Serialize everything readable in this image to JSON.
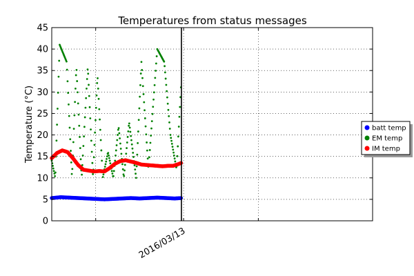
{
  "chart_data": {
    "type": "scatter",
    "title": "Temperatures from status messages",
    "xlabel": "",
    "ylabel": "Temperature (°C)",
    "ylim": [
      0,
      45
    ],
    "yticks": [
      0,
      5,
      10,
      15,
      20,
      25,
      30,
      35,
      40,
      45
    ],
    "x_tick_labels": [
      "2016/03/13"
    ],
    "grid": true,
    "legend_position": "right, outside plot",
    "marker_line_label": "",
    "x_range_days": [
      -3,
      4.3
    ],
    "data_end_day": -0.05,
    "x_tick_day": 0,
    "x_minor_grid_days": [
      -2,
      1.7
    ],
    "series": [
      {
        "name": "batt temp",
        "color": "#0000ff",
        "points_x_days": [
          -3.0,
          -2.8,
          -2.6,
          -2.4,
          -2.2,
          -2.0,
          -1.8,
          -1.6,
          -1.4,
          -1.2,
          -1.0,
          -0.8,
          -0.6,
          -0.4,
          -0.2,
          -0.05
        ],
        "points_y": [
          5.3,
          5.5,
          5.4,
          5.3,
          5.2,
          5.1,
          5.0,
          5.1,
          5.2,
          5.3,
          5.2,
          5.3,
          5.4,
          5.3,
          5.2,
          5.3
        ]
      },
      {
        "name": "EM temp",
        "color": "#008000",
        "points_x_days": [
          -3.0,
          -2.92,
          -2.82,
          -2.66,
          -2.54,
          -2.44,
          -2.32,
          -2.18,
          -2.06,
          -1.96,
          -1.84,
          -1.72,
          -1.6,
          -1.48,
          -1.36,
          -1.24,
          -1.08,
          -0.96,
          -0.8,
          -0.6,
          -0.44,
          -0.3,
          -0.16,
          -0.05
        ],
        "points_y": [
          14,
          10,
          41,
          37,
          10,
          36,
          10,
          36,
          10,
          34,
          10,
          16,
          10,
          22,
          10,
          23,
          10,
          37,
          12,
          40,
          37,
          20,
          12,
          33
        ]
      },
      {
        "name": "IM temp",
        "color": "#ff0000",
        "points_x_days": [
          -3.0,
          -2.88,
          -2.76,
          -2.64,
          -2.52,
          -2.4,
          -2.28,
          -2.16,
          -2.04,
          -1.92,
          -1.8,
          -1.68,
          -1.56,
          -1.44,
          -1.32,
          -1.2,
          -1.08,
          -0.96,
          -0.84,
          -0.72,
          -0.6,
          -0.48,
          -0.36,
          -0.24,
          -0.12,
          -0.05
        ],
        "points_y": [
          14.6,
          15.8,
          16.4,
          16.0,
          14.6,
          13.0,
          11.9,
          11.7,
          11.5,
          11.6,
          11.5,
          12.3,
          13.3,
          13.9,
          14.1,
          13.8,
          13.5,
          13.1,
          13.0,
          12.9,
          12.8,
          12.7,
          12.8,
          12.8,
          13.2,
          13.5
        ]
      }
    ]
  }
}
